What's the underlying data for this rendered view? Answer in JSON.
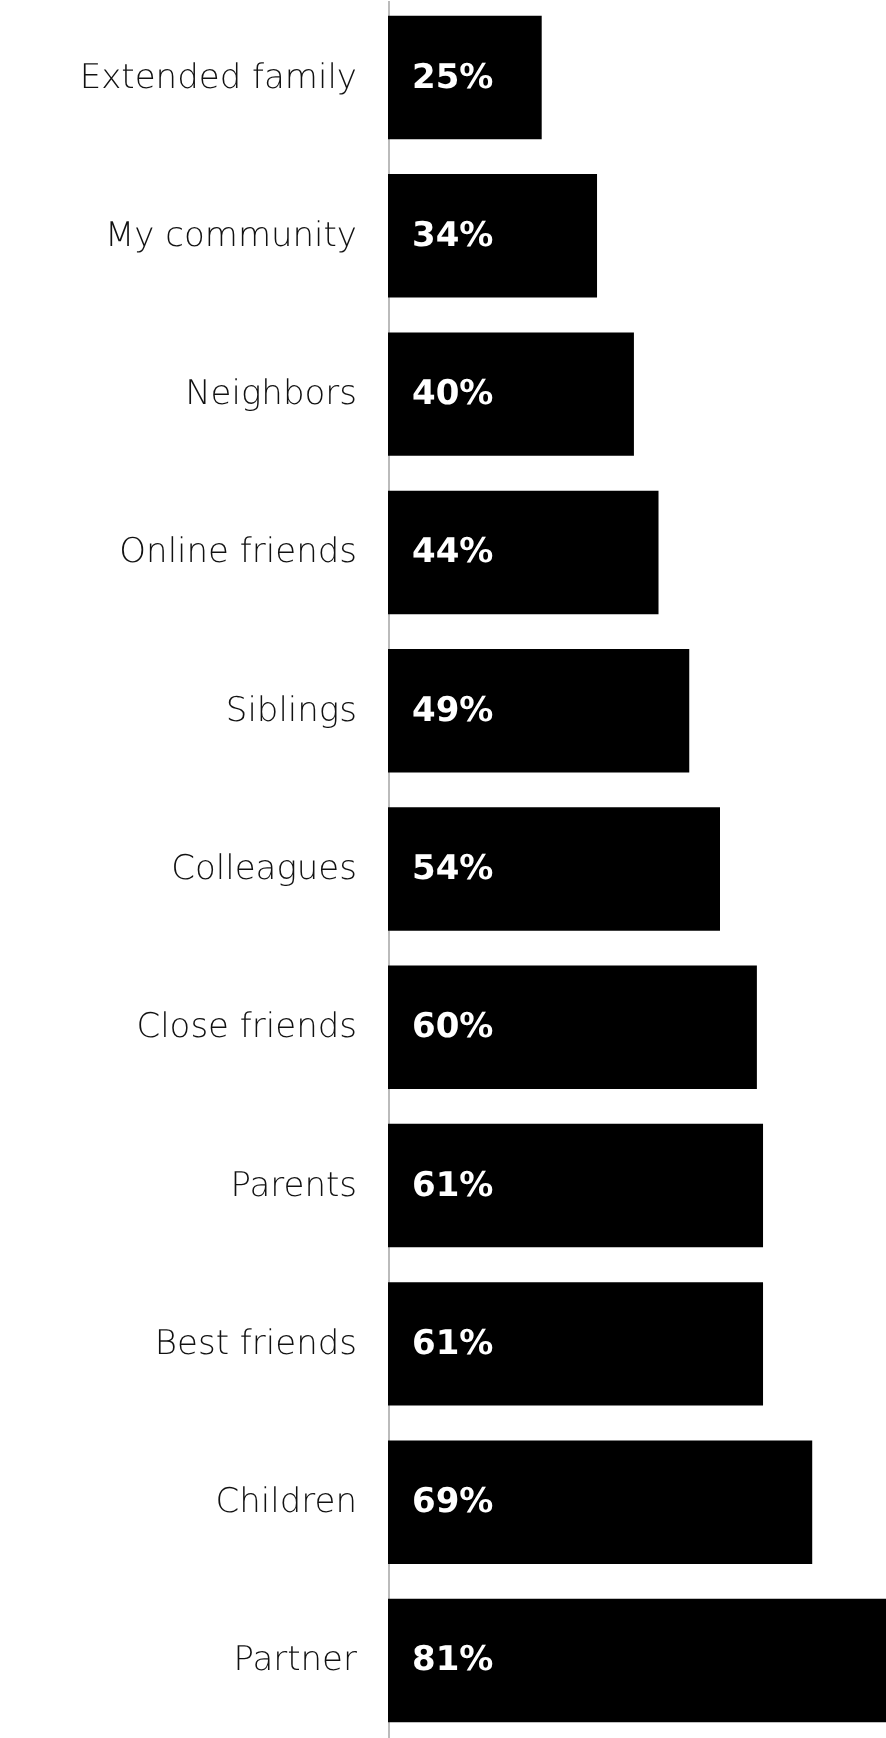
{
  "chart_data": {
    "type": "bar",
    "orientation": "horizontal",
    "categories": [
      "Extended family",
      "My community",
      "Neighbors",
      "Online friends",
      "Siblings",
      "Colleagues",
      "Close friends",
      "Parents",
      "Best friends",
      "Children",
      "Partner"
    ],
    "values": [
      25,
      34,
      40,
      44,
      49,
      54,
      60,
      61,
      61,
      69,
      81
    ],
    "value_labels": [
      "25%",
      "34%",
      "40%",
      "44%",
      "49%",
      "54%",
      "60%",
      "61%",
      "61%",
      "69%",
      "81%"
    ],
    "color": "#000000"
  }
}
